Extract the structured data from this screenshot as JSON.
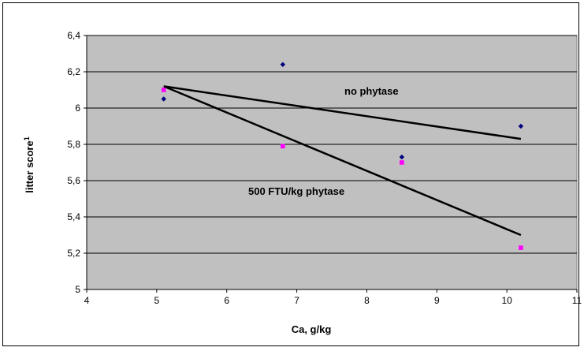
{
  "chart_data": {
    "type": "scatter",
    "title": "",
    "xlabel": "Ca, g/kg",
    "ylabel": "litter score",
    "ylabel_superscript": "1",
    "xlim": [
      4,
      11
    ],
    "ylim": [
      5,
      6.4
    ],
    "x_ticks": [
      "4",
      "5",
      "6",
      "7",
      "8",
      "9",
      "10",
      "11"
    ],
    "y_ticks": [
      "5",
      "5,2",
      "5,4",
      "5,6",
      "5,8",
      "6",
      "6,2",
      "6,4"
    ],
    "grid": "horizontal",
    "plot_background": "#c0c0c0",
    "series": [
      {
        "color": "#000080",
        "marker": "diamond",
        "points": [
          [
            5.1,
            6.05
          ],
          [
            6.8,
            6.24
          ],
          [
            8.5,
            5.73
          ],
          [
            10.2,
            5.9
          ]
        ],
        "trendline": [
          [
            5.1,
            6.12
          ],
          [
            10.2,
            5.83
          ]
        ]
      },
      {
        "color": "#ff00ff",
        "marker": "square",
        "points": [
          [
            5.1,
            6.1
          ],
          [
            6.8,
            5.79
          ],
          [
            8.5,
            5.7
          ],
          [
            10.2,
            5.23
          ]
        ],
        "trendline": [
          [
            5.1,
            6.12
          ],
          [
            10.2,
            5.3
          ]
        ]
      }
    ],
    "annotations": [
      "no phytase",
      "500 FTU/kg phytase"
    ]
  }
}
